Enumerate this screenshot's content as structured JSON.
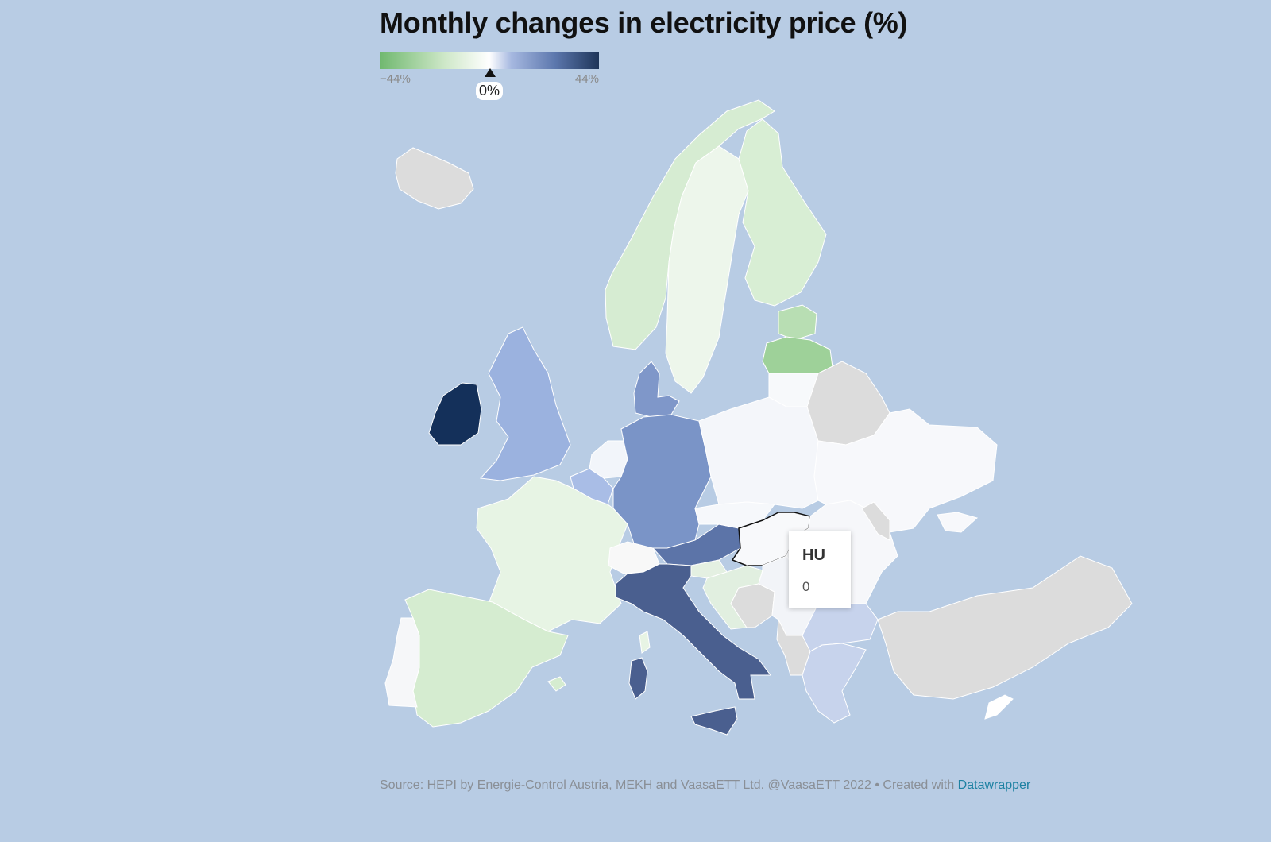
{
  "title": "Monthly changes in electricity price (%)",
  "legend": {
    "min_label": "−44%",
    "max_label": "44%",
    "marker_label": "0%",
    "gradient_colors": [
      "#70b86f",
      "#cfe8c9",
      "#ffffff",
      "#a6b8e0",
      "#5c77ad",
      "#1e3559"
    ]
  },
  "colors": {
    "ocean": "#b8cce4",
    "no_data": "#dcdcdc",
    "strong_green": "#8fcb8c",
    "green": "#cfe8c9",
    "light_green": "#e7f4e4",
    "near_white": "#f7f9fb",
    "light_blue": "#9fb5e0",
    "mid_blue": "#7a94c7",
    "dark_blue": "#4a5f8f",
    "navy": "#14305a"
  },
  "tooltip": {
    "code": "HU",
    "value": "0"
  },
  "source": {
    "text": "Source: HEPI by Energie-Control Austria, MEKH and VaasaETT Ltd. @VaasaETT 2022 • Created with ",
    "link_text": "Datawrapper"
  },
  "regions": [
    {
      "name": "iceland",
      "fill": "#dcdcdc"
    },
    {
      "name": "norway",
      "fill": "#d6ecd2"
    },
    {
      "name": "sweden",
      "fill": "#edf6eb"
    },
    {
      "name": "finland",
      "fill": "#d8eed4"
    },
    {
      "name": "estonia",
      "fill": "#b8deb3"
    },
    {
      "name": "latvia",
      "fill": "#9ed199"
    },
    {
      "name": "lithuania",
      "fill": "#f7f9fb"
    },
    {
      "name": "uk",
      "fill": "#9bb2df"
    },
    {
      "name": "ireland",
      "fill": "#14305a"
    },
    {
      "name": "denmark",
      "fill": "#7f97c9"
    },
    {
      "name": "netherlands",
      "fill": "#f2f5fa"
    },
    {
      "name": "belgium",
      "fill": "#a9bde6"
    },
    {
      "name": "germany",
      "fill": "#7a94c7"
    },
    {
      "name": "poland",
      "fill": "#f4f6fa"
    },
    {
      "name": "belarus",
      "fill": "#dcdcdc"
    },
    {
      "name": "ukraine",
      "fill": "#f7f8fb"
    },
    {
      "name": "france",
      "fill": "#e7f4e4"
    },
    {
      "name": "switzerland",
      "fill": "#f8f8f8"
    },
    {
      "name": "austria",
      "fill": "#5c74a8"
    },
    {
      "name": "czechia",
      "fill": "#f6f8fb"
    },
    {
      "name": "hungary",
      "fill": "#f8f9fb"
    },
    {
      "name": "romania",
      "fill": "#f6f7fa"
    },
    {
      "name": "moldova",
      "fill": "#dcdcdc"
    },
    {
      "name": "slovenia",
      "fill": "#e4f0e2"
    },
    {
      "name": "croatia",
      "fill": "#e1efe0"
    },
    {
      "name": "bosnia",
      "fill": "#dcdcdc"
    },
    {
      "name": "serbia",
      "fill": "#f2f4f8"
    },
    {
      "name": "balkans-west",
      "fill": "#dcdcdc"
    },
    {
      "name": "bulgaria",
      "fill": "#c7d3ec"
    },
    {
      "name": "greece",
      "fill": "#c7d3ec"
    },
    {
      "name": "turkey",
      "fill": "#dcdcdc"
    },
    {
      "name": "cyprus",
      "fill": "#ffffff"
    },
    {
      "name": "italy",
      "fill": "#4a5f8f"
    },
    {
      "name": "sicily",
      "fill": "#4a5f8f"
    },
    {
      "name": "sardinia",
      "fill": "#4a5f8f"
    },
    {
      "name": "corsica",
      "fill": "#e7f4e4"
    },
    {
      "name": "spain",
      "fill": "#d5ecd0"
    },
    {
      "name": "portugal",
      "fill": "#f6f7f9"
    },
    {
      "name": "crimea",
      "fill": "#f7f8fb"
    },
    {
      "name": "balearics",
      "fill": "#d5ecd0"
    }
  ]
}
